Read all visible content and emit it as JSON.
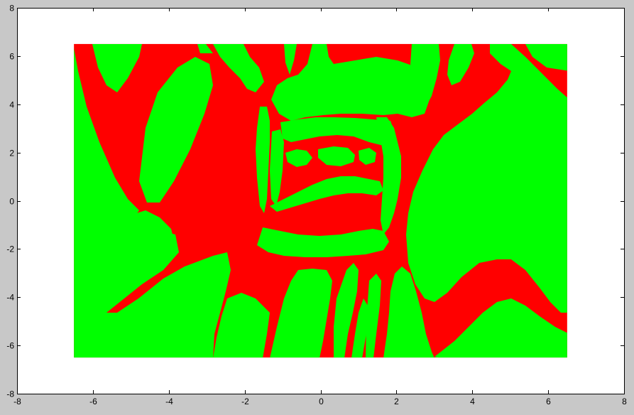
{
  "chart_data": {
    "type": "heatmap",
    "title": "",
    "xlabel": "",
    "ylabel": "",
    "xlim": [
      -8,
      8
    ],
    "ylim": [
      -8,
      8
    ],
    "x_ticks": [
      -8,
      -6,
      -4,
      -2,
      0,
      2,
      4,
      6,
      8
    ],
    "y_ticks": [
      -8,
      -6,
      -4,
      -2,
      0,
      2,
      4,
      6,
      8
    ],
    "data_extent": {
      "x": [
        -6.5,
        6.5
      ],
      "y": [
        -6.5,
        6.5
      ]
    },
    "classes": [
      {
        "value": 0,
        "color": "#ff0000"
      },
      {
        "value": 1,
        "color": "#00ff00"
      }
    ],
    "grid": false,
    "legend": "none"
  },
  "colors": {
    "figure_bg": "#c8c8c8",
    "axes_bg": "#ffffff",
    "class_red": "#ff0000",
    "class_green": "#00ff00"
  }
}
